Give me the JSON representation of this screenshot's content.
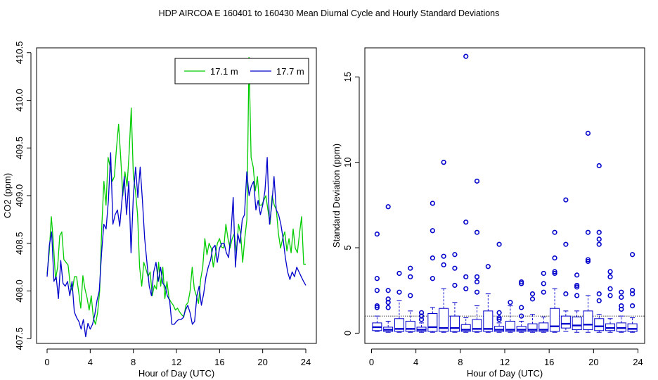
{
  "figure": {
    "title": "HDP   AIRCOA E   160401 to 160430   Mean Diurnal Cycle and Hourly Standard Deviations"
  },
  "chart_data": [
    {
      "type": "line",
      "title": "",
      "xlabel": "Hour of Day (UTC)",
      "ylabel": "CO2 (ppm)",
      "xlim": [
        0,
        24
      ],
      "ylim": [
        407.45,
        410.55
      ],
      "xticks": [
        "0",
        "4",
        "8",
        "12",
        "16",
        "20",
        "24"
      ],
      "xtick_values": [
        0,
        4,
        8,
        12,
        16,
        20,
        24
      ],
      "yticks": [
        "407.5",
        "408.0",
        "408.5",
        "409.0",
        "409.5",
        "410.0",
        "410.5"
      ],
      "ytick_values": [
        407.5,
        408.0,
        408.5,
        409.0,
        409.5,
        410.0,
        410.5
      ],
      "legend": {
        "position": "top-right",
        "entries": [
          {
            "label": "17.1 m",
            "color": "#00cc00"
          },
          {
            "label": "17.7 m",
            "color": "#0000cc"
          }
        ]
      },
      "x_step_hours": 0.1667,
      "series": [
        {
          "name": "17.1 m",
          "color": "#00cc00",
          "values": [
            408.18,
            408.4,
            408.78,
            408.5,
            408.12,
            408.25,
            408.58,
            408.62,
            408.33,
            408.3,
            408.27,
            408.06,
            408.0,
            408.15,
            408.15,
            407.99,
            407.82,
            408.16,
            408.02,
            407.93,
            407.8,
            407.95,
            407.72,
            407.65,
            407.77,
            408.0,
            408.68,
            409.15,
            408.9,
            409.4,
            409.3,
            409.15,
            409.2,
            409.5,
            409.75,
            409.4,
            409.0,
            409.25,
            409.1,
            409.45,
            409.92,
            409.2,
            409.05,
            408.8,
            408.25,
            408.05,
            408.3,
            408.23,
            408.15,
            408.2,
            407.95,
            408.06,
            408.02,
            408.3,
            408.05,
            408.25,
            407.92,
            408.1,
            407.92,
            407.88,
            407.85,
            407.8,
            407.82,
            407.78,
            407.75,
            407.73,
            407.85,
            407.88,
            408.0,
            408.25,
            408.02,
            407.95,
            407.87,
            408.12,
            408.25,
            408.55,
            408.38,
            408.5,
            408.45,
            408.25,
            408.38,
            408.5,
            408.55,
            408.46,
            408.45,
            408.7,
            408.55,
            408.45,
            408.55,
            408.6,
            408.4,
            408.7,
            408.6,
            408.3,
            408.55,
            408.75,
            410.45,
            409.4,
            409.3,
            409.05,
            409.2,
            408.9,
            408.9,
            408.95,
            409.0,
            408.85,
            408.7,
            409.0,
            408.9,
            408.85,
            408.6,
            408.45,
            408.55,
            408.62,
            408.42,
            408.55,
            408.4,
            408.65,
            408.45,
            408.4,
            408.6,
            408.78,
            408.28,
            408.28
          ]
        },
        {
          "name": "17.7 m",
          "color": "#0000cc",
          "values": [
            408.15,
            408.48,
            408.62,
            408.1,
            408.15,
            407.92,
            408.32,
            408.08,
            408.05,
            408.1,
            407.95,
            408.1,
            407.78,
            407.72,
            407.68,
            407.6,
            407.7,
            407.52,
            407.66,
            407.6,
            407.65,
            407.75,
            407.9,
            408.0,
            408.4,
            408.7,
            408.65,
            408.95,
            409.45,
            408.7,
            408.8,
            408.85,
            408.68,
            408.95,
            409.2,
            408.8,
            409.15,
            408.4,
            409.0,
            409.3,
            408.98,
            409.3,
            408.95,
            408.55,
            408.3,
            408.05,
            407.95,
            408.2,
            408.3,
            408.1,
            408.25,
            408.08,
            408.05,
            407.95,
            407.9,
            407.65,
            407.65,
            407.68,
            407.7,
            407.7,
            407.72,
            407.8,
            407.85,
            407.77,
            407.65,
            407.68,
            407.95,
            408.05,
            407.85,
            407.97,
            408.15,
            408.25,
            408.32,
            408.45,
            408.48,
            408.3,
            408.45,
            408.5,
            408.5,
            408.4,
            408.35,
            408.6,
            408.98,
            408.25,
            408.6,
            408.5,
            408.75,
            408.8,
            409.25,
            409.0,
            409.1,
            409.15,
            408.85,
            408.95,
            408.8,
            408.9,
            409.05,
            409.4,
            408.7,
            408.9,
            409.2,
            408.85,
            408.8,
            408.7,
            408.55,
            408.35,
            408.2,
            408.12,
            408.2,
            408.15,
            408.25,
            408.2,
            408.15,
            408.1,
            408.06
          ]
        }
      ]
    },
    {
      "type": "box",
      "title": "",
      "xlabel": "Hour of Day (UTC)",
      "ylabel": "Standard Deviation (ppm)",
      "xlim": [
        -0.6,
        24.6
      ],
      "ylim": [
        -0.6,
        16.7
      ],
      "xticks": [
        "0",
        "4",
        "8",
        "12",
        "16",
        "20",
        "24"
      ],
      "xtick_values": [
        0,
        4,
        8,
        12,
        16,
        20,
        24
      ],
      "yticks": [
        "0",
        "5",
        "10",
        "15"
      ],
      "ytick_values": [
        0,
        5,
        10,
        15
      ],
      "reference_line": 1.0,
      "box_color": "#0000cc",
      "hours": [
        0.5,
        1.5,
        2.5,
        3.5,
        4.5,
        5.5,
        6.5,
        7.5,
        8.5,
        9.5,
        10.5,
        11.5,
        12.5,
        13.5,
        14.5,
        15.5,
        16.5,
        17.5,
        18.5,
        19.5,
        20.5,
        21.5,
        22.5,
        23.5
      ],
      "boxes": [
        {
          "min": 0.1,
          "q1": 0.15,
          "median": 0.35,
          "q3": 0.6,
          "max": 1.0,
          "outliers": [
            5.8,
            3.2,
            2.5,
            1.6,
            1.5
          ]
        },
        {
          "min": 0.05,
          "q1": 0.1,
          "median": 0.2,
          "q3": 0.35,
          "max": 0.7,
          "outliers": [
            7.4,
            2.5,
            2.0,
            1.8,
            1.5
          ]
        },
        {
          "min": 0.05,
          "q1": 0.1,
          "median": 0.25,
          "q3": 0.85,
          "max": 1.9,
          "outliers": [
            3.5,
            2.4
          ]
        },
        {
          "min": 0.05,
          "q1": 0.1,
          "median": 0.25,
          "q3": 0.7,
          "max": 1.3,
          "outliers": [
            3.8,
            3.3,
            2.2
          ]
        },
        {
          "min": 0.05,
          "q1": 0.1,
          "median": 0.2,
          "q3": 0.35,
          "max": 0.6,
          "outliers": [
            1.2,
            1.0,
            0.8
          ]
        },
        {
          "min": 0.05,
          "q1": 0.1,
          "median": 0.35,
          "q3": 1.15,
          "max": 1.5,
          "outliers": [
            7.6,
            6.0,
            4.4,
            3.2
          ]
        },
        {
          "min": 0.05,
          "q1": 0.1,
          "median": 0.3,
          "q3": 1.45,
          "max": 2.6,
          "outliers": [
            10.0,
            4.5,
            4.0
          ]
        },
        {
          "min": 0.05,
          "q1": 0.1,
          "median": 0.3,
          "q3": 1.0,
          "max": 1.8,
          "outliers": [
            4.6,
            3.8,
            2.8
          ]
        },
        {
          "min": 0.05,
          "q1": 0.1,
          "median": 0.2,
          "q3": 0.5,
          "max": 0.9,
          "outliers": [
            16.2,
            6.5,
            3.3,
            2.6
          ]
        },
        {
          "min": 0.05,
          "q1": 0.1,
          "median": 0.25,
          "q3": 0.8,
          "max": 1.6,
          "outliers": [
            8.9,
            5.9,
            3.3,
            3.0,
            2.4
          ]
        },
        {
          "min": 0.05,
          "q1": 0.1,
          "median": 0.25,
          "q3": 1.3,
          "max": 2.3,
          "outliers": [
            3.9
          ]
        },
        {
          "min": 0.05,
          "q1": 0.1,
          "median": 0.2,
          "q3": 0.4,
          "max": 0.6,
          "outliers": [
            5.2,
            1.2,
            0.9,
            0.8
          ]
        },
        {
          "min": 0.05,
          "q1": 0.1,
          "median": 0.2,
          "q3": 0.7,
          "max": 1.6,
          "outliers": [
            1.8
          ]
        },
        {
          "min": 0.05,
          "q1": 0.1,
          "median": 0.2,
          "q3": 0.4,
          "max": 0.7,
          "outliers": [
            3.0,
            2.9,
            1.5,
            1.0
          ]
        },
        {
          "min": 0.05,
          "q1": 0.1,
          "median": 0.2,
          "q3": 0.55,
          "max": 1.1,
          "outliers": [
            2.3,
            2.0
          ]
        },
        {
          "min": 0.05,
          "q1": 0.1,
          "median": 0.2,
          "q3": 0.6,
          "max": 0.95,
          "outliers": [
            3.5,
            2.9,
            2.4
          ]
        },
        {
          "min": 0.05,
          "q1": 0.1,
          "median": 0.4,
          "q3": 1.45,
          "max": 2.6,
          "outliers": [
            5.9,
            4.4,
            3.6,
            3.5
          ]
        },
        {
          "min": 0.1,
          "q1": 0.3,
          "median": 0.55,
          "q3": 1.0,
          "max": 1.3,
          "outliers": [
            7.8,
            5.2,
            2.3
          ]
        },
        {
          "min": 0.05,
          "q1": 0.2,
          "median": 0.45,
          "q3": 0.95,
          "max": 1.3,
          "outliers": [
            3.4,
            2.8,
            2.7,
            2.2
          ]
        },
        {
          "min": 0.05,
          "q1": 0.2,
          "median": 0.5,
          "q3": 1.3,
          "max": 2.2,
          "outliers": [
            11.7,
            5.9,
            4.3,
            4.2
          ]
        },
        {
          "min": 0.05,
          "q1": 0.15,
          "median": 0.4,
          "q3": 0.85,
          "max": 1.1,
          "outliers": [
            9.8,
            5.9,
            5.5,
            5.2,
            2.3,
            1.9
          ]
        },
        {
          "min": 0.05,
          "q1": 0.15,
          "median": 0.3,
          "q3": 0.55,
          "max": 0.85,
          "outliers": [
            3.6,
            3.3,
            2.6,
            2.2
          ]
        },
        {
          "min": 0.05,
          "q1": 0.1,
          "median": 0.3,
          "q3": 0.6,
          "max": 1.0,
          "outliers": [
            2.4,
            2.1,
            1.6,
            1.4
          ]
        },
        {
          "min": 0.05,
          "q1": 0.1,
          "median": 0.25,
          "q3": 0.55,
          "max": 0.9,
          "outliers": [
            4.6,
            2.5,
            2.3,
            1.6
          ]
        }
      ]
    }
  ]
}
